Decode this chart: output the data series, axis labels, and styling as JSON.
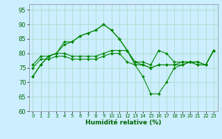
{
  "title": "",
  "xlabel": "Humidité relative (%)",
  "ylabel": "",
  "bg_color": "#cceeff",
  "grid_color": "#aaddcc",
  "line_color": "#008800",
  "ylim": [
    60,
    97
  ],
  "xlim": [
    -0.5,
    23.5
  ],
  "yticks": [
    60,
    65,
    70,
    75,
    80,
    85,
    90,
    95
  ],
  "xticks": [
    0,
    1,
    2,
    3,
    4,
    5,
    6,
    7,
    8,
    9,
    10,
    11,
    12,
    13,
    14,
    15,
    16,
    17,
    18,
    19,
    20,
    21,
    22,
    23
  ],
  "series": [
    {
      "x": [
        0,
        1,
        2,
        3,
        4,
        5,
        6,
        7,
        8,
        9,
        10,
        11,
        12,
        13,
        14,
        15,
        16,
        17,
        18,
        19,
        20,
        21,
        22,
        23
      ],
      "y": [
        72,
        76,
        79,
        80,
        84,
        84,
        86,
        87,
        88,
        90,
        88,
        85,
        81,
        76,
        72,
        66,
        66,
        70,
        75,
        76,
        77,
        76,
        76,
        81
      ]
    },
    {
      "x": [
        0,
        1,
        2,
        3,
        4,
        5,
        6,
        7,
        8,
        9,
        10,
        11,
        12,
        13,
        14,
        15,
        16,
        17,
        18,
        19,
        20,
        21,
        22,
        23
      ],
      "y": [
        72,
        76,
        79,
        80,
        83,
        84,
        86,
        87,
        88,
        90,
        88,
        85,
        81,
        77,
        76,
        75,
        76,
        76,
        76,
        77,
        77,
        77,
        76,
        81
      ]
    },
    {
      "x": [
        0,
        1,
        2,
        3,
        4,
        5,
        6,
        7,
        8,
        9,
        10,
        11,
        12,
        13,
        14,
        15,
        16,
        17,
        18,
        19,
        20,
        21,
        22,
        23
      ],
      "y": [
        76,
        79,
        79,
        80,
        80,
        79,
        79,
        79,
        79,
        80,
        81,
        81,
        81,
        77,
        77,
        76,
        81,
        80,
        77,
        77,
        77,
        77,
        76,
        81
      ]
    },
    {
      "x": [
        0,
        1,
        2,
        3,
        4,
        5,
        6,
        7,
        8,
        9,
        10,
        11,
        12,
        13,
        14,
        15,
        16,
        17,
        18,
        19,
        20,
        21,
        22,
        23
      ],
      "y": [
        75,
        78,
        78,
        79,
        79,
        78,
        78,
        78,
        78,
        79,
        80,
        80,
        77,
        76,
        76,
        75,
        76,
        76,
        76,
        76,
        77,
        76,
        76,
        81
      ]
    }
  ]
}
